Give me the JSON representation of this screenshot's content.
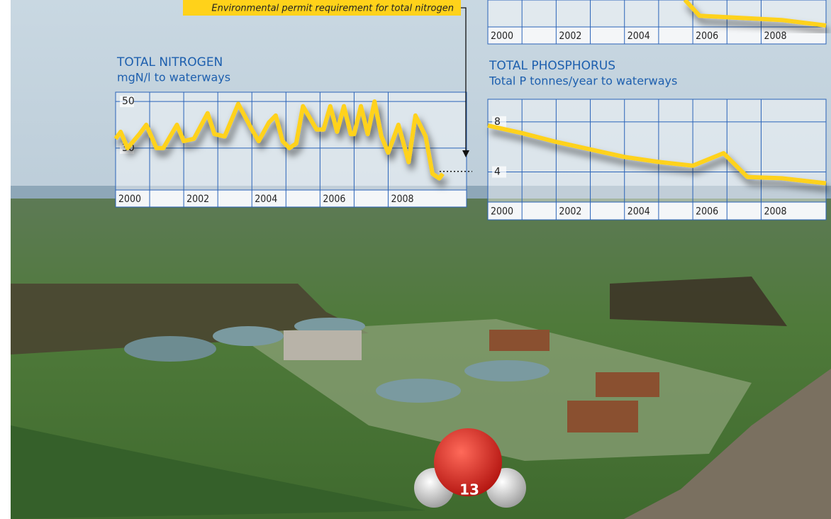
{
  "chart_data": [
    {
      "type": "line",
      "title": "TOTAL NITROGEN",
      "subtitle": "mgN/l to waterways",
      "annotation": "Environmental permit requirement for total nitrogen",
      "threshold": 20,
      "x": [
        2000,
        2000.15,
        2000.35,
        2000.7,
        2000.9,
        2001.2,
        2001.4,
        2001.8,
        2002,
        2002.3,
        2002.7,
        2002.9,
        2003.2,
        2003.6,
        2004,
        2004.2,
        2004.5,
        2004.7,
        2004.9,
        2005.1,
        2005.3,
        2005.5,
        2005.9,
        2006.1,
        2006.3,
        2006.5,
        2006.7,
        2006.9,
        2007,
        2007.2,
        2007.4,
        2007.6,
        2007.8,
        2008,
        2008.3,
        2008.6,
        2008.8,
        2009.1,
        2009.3,
        2009.5,
        2009.6
      ],
      "values": [
        34,
        37,
        30,
        36,
        40,
        30,
        30,
        40,
        33,
        34,
        45,
        36,
        35,
        49,
        38,
        33,
        41,
        44,
        33,
        30,
        32,
        48,
        38,
        38,
        48,
        37,
        48,
        36,
        36,
        48,
        36,
        50,
        35,
        28,
        40,
        24,
        44,
        35,
        19,
        17,
        19
      ],
      "color": "#ffd21a",
      "xlim": [
        2000,
        2010.3
      ],
      "ylim": [
        12,
        54
      ],
      "xticks": [
        2000,
        2002,
        2004,
        2006,
        2008
      ],
      "yticks": [
        50,
        30
      ],
      "grid": true
    },
    {
      "type": "line",
      "title": "TOTAL PHOSPHORUS",
      "subtitle": "Total P tonnes/year to waterways",
      "x": [
        2000,
        2001,
        2002,
        2003,
        2004,
        2005,
        2006,
        2006.9,
        2007.6,
        2008.6,
        2009.9
      ],
      "values": [
        7.7,
        7.1,
        6.4,
        5.8,
        5.2,
        4.8,
        4.5,
        5.5,
        3.6,
        3.5,
        3.1
      ],
      "color": "#ffd21a",
      "xlim": [
        2000,
        2009.9
      ],
      "ylim": [
        1.6,
        9.8
      ],
      "xticks": [
        2000,
        2002,
        2004,
        2006,
        2008
      ],
      "yticks": [
        8,
        4
      ],
      "grid": true
    },
    {
      "type": "line",
      "x": [
        2005.77,
        2006.2,
        2008.6,
        2009.9
      ],
      "values": [
        3.9,
        1.6,
        1.0,
        0.2
      ],
      "color": "#ffd21a",
      "xlim": [
        2000,
        2009.9
      ],
      "ylim": [
        0,
        10
      ],
      "xticks": [
        2000,
        2002,
        2004,
        2006,
        2008
      ],
      "grid": true
    }
  ],
  "page_number": "13"
}
